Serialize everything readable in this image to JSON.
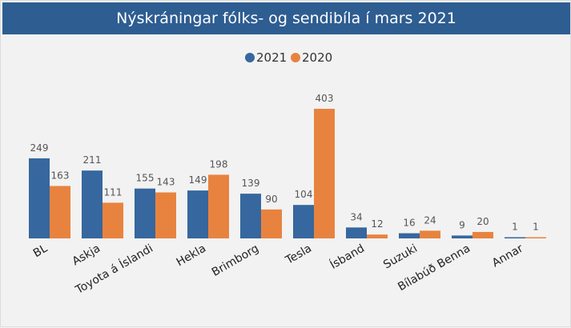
{
  "title": "Nýskráningar fólks- og sendibíla í mars 2021",
  "colors": {
    "header_bg": "#2e5d92",
    "series_2021": "#36679e",
    "series_2020": "#e8833f"
  },
  "chart_data": {
    "type": "bar",
    "title": "Nýskráningar fólks- og sendibíla í mars 2021",
    "xlabel": "",
    "ylabel": "",
    "ylim": [
      0,
      403
    ],
    "grid": false,
    "legend_position": "top-center",
    "categories": [
      "BL",
      "Askja",
      "Toyota á Íslandi",
      "Hekla",
      "Brimborg",
      "Tesla",
      "Ísband",
      "Suzuki",
      "Bílabúð Benna",
      "Annar"
    ],
    "series": [
      {
        "name": "2021",
        "color": "#36679e",
        "values": [
          249,
          211,
          155,
          149,
          139,
          104,
          34,
          16,
          9,
          1
        ]
      },
      {
        "name": "2020",
        "color": "#e8833f",
        "values": [
          163,
          111,
          143,
          198,
          90,
          403,
          12,
          24,
          20,
          1
        ]
      }
    ]
  }
}
